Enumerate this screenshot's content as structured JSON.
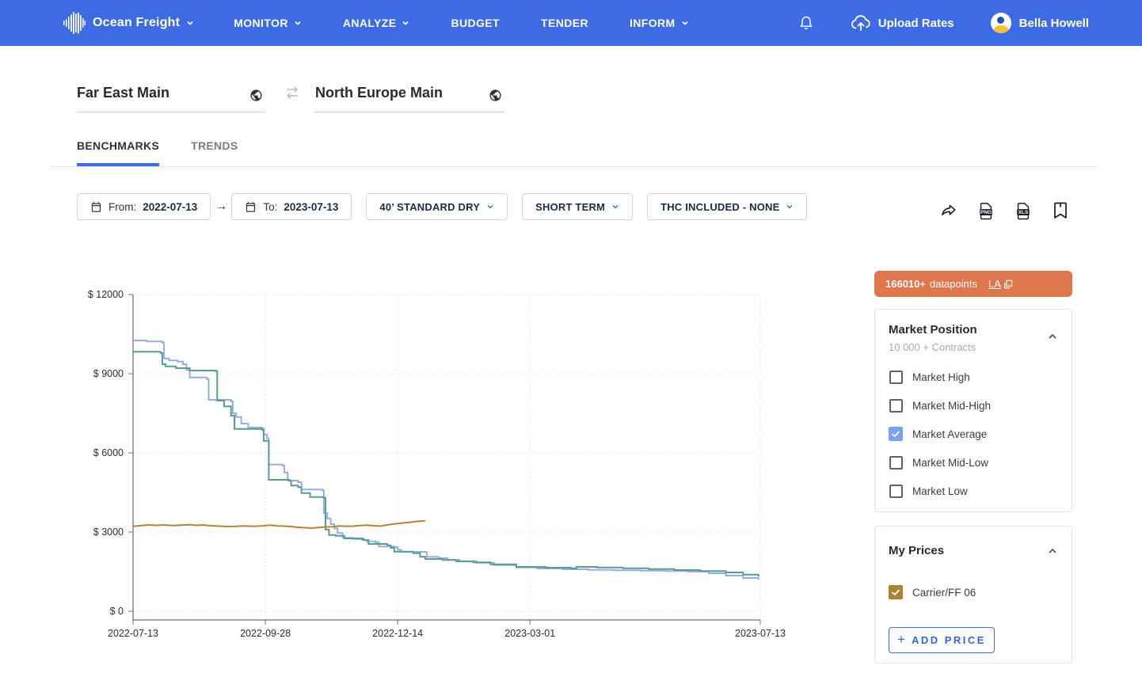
{
  "navbar": {
    "brand": "Ocean Freight",
    "items": [
      {
        "label": "MONITOR",
        "chevron": true
      },
      {
        "label": "ANALYZE",
        "chevron": true
      },
      {
        "label": "BUDGET",
        "chevron": false
      },
      {
        "label": "TENDER",
        "chevron": false
      },
      {
        "label": "INFORM",
        "chevron": true
      }
    ],
    "upload_label": "Upload Rates",
    "user_name": "Bella Howell",
    "color": "#3d6be4"
  },
  "routes": {
    "origin": "Far East Main",
    "destination": "North Europe Main"
  },
  "tabs": {
    "benchmarks": "BENCHMARKS",
    "trends": "TRENDS"
  },
  "filters": {
    "from_label": "From:",
    "from_value": "2022-07-13",
    "to_label": "To:",
    "to_value": "2023-07-13",
    "equipment": "40’ STANDARD DRY",
    "term": "SHORT TERM",
    "thc": "THC INCLUDED - NONE"
  },
  "export": {
    "png_label": "PNG",
    "xls_label": "XLS"
  },
  "datapoints_banner": {
    "count": "166010+",
    "label": "datapoints",
    "link": "LA",
    "color": "#e0764b"
  },
  "market_position": {
    "title": "Market Position",
    "subtitle": "10 000 + Contracts",
    "options": [
      {
        "label": "Market High",
        "checked": false
      },
      {
        "label": "Market Mid-High",
        "checked": false
      },
      {
        "label": "Market Average",
        "checked": true,
        "check_color": "#7ba1f1"
      },
      {
        "label": "Market Mid-Low",
        "checked": false
      },
      {
        "label": "Market Low",
        "checked": false
      }
    ]
  },
  "my_prices": {
    "title": "My Prices",
    "options": [
      {
        "label": "Carrier/FF 06",
        "checked": true,
        "check_color": "#ad8132"
      }
    ],
    "add_button": "ADD PRICE"
  },
  "chart_data": {
    "type": "line",
    "title": "",
    "xlabel": "",
    "ylabel": "",
    "x_axis": {
      "labels": [
        "2022-07-13",
        "2022-09-28",
        "2022-12-14",
        "2023-03-01",
        "2023-07-13"
      ],
      "label_days": [
        0,
        77,
        154,
        231,
        365
      ],
      "range_days": [
        0,
        365
      ]
    },
    "y_axis": {
      "ticks": [
        0,
        3000,
        6000,
        9000,
        12000
      ],
      "tick_labels": [
        "$ 0",
        "$ 3000",
        "$ 6000",
        "$ 9000",
        "$ 12000"
      ],
      "range": [
        0,
        12000
      ]
    },
    "grid": true,
    "legend": false,
    "series": [
      {
        "name": "Market Average (1)",
        "color": "#97abe9",
        "style": "step",
        "points": [
          [
            0,
            10260
          ],
          [
            8,
            10220
          ],
          [
            17,
            10180
          ],
          [
            18,
            9580
          ],
          [
            21,
            9500
          ],
          [
            26,
            9460
          ],
          [
            29,
            9360
          ],
          [
            31,
            9140
          ],
          [
            33,
            8860
          ],
          [
            43,
            8800
          ],
          [
            44,
            8010
          ],
          [
            57,
            7950
          ],
          [
            58,
            7500
          ],
          [
            60,
            7360
          ],
          [
            63,
            7110
          ],
          [
            67,
            6960
          ],
          [
            75,
            6930
          ],
          [
            76,
            6700
          ],
          [
            78,
            6550
          ],
          [
            79,
            5560
          ],
          [
            87,
            5520
          ],
          [
            88,
            5260
          ],
          [
            90,
            4950
          ],
          [
            96,
            4890
          ],
          [
            98,
            4610
          ],
          [
            110,
            4580
          ],
          [
            111,
            3720
          ],
          [
            113,
            3510
          ],
          [
            115,
            3300
          ],
          [
            117,
            3140
          ],
          [
            119,
            2960
          ],
          [
            122,
            2780
          ],
          [
            128,
            2740
          ],
          [
            133,
            2700
          ],
          [
            136,
            2650
          ],
          [
            141,
            2620
          ],
          [
            143,
            2450
          ],
          [
            152,
            2430
          ],
          [
            154,
            2330
          ],
          [
            156,
            2250
          ],
          [
            170,
            2240
          ],
          [
            171,
            2060
          ],
          [
            178,
            2010
          ],
          [
            183,
            1950
          ],
          [
            190,
            1900
          ],
          [
            200,
            1840
          ],
          [
            210,
            1750
          ],
          [
            223,
            1660
          ],
          [
            235,
            1620
          ],
          [
            250,
            1590
          ],
          [
            265,
            1570
          ],
          [
            280,
            1550
          ],
          [
            295,
            1540
          ],
          [
            310,
            1520
          ],
          [
            323,
            1500
          ],
          [
            335,
            1440
          ],
          [
            345,
            1350
          ],
          [
            355,
            1260
          ],
          [
            364,
            1190
          ]
        ]
      },
      {
        "name": "Market Average (2)",
        "color": "#55a08c",
        "style": "step",
        "points": [
          [
            0,
            9830
          ],
          [
            16,
            9790
          ],
          [
            17,
            9360
          ],
          [
            19,
            9280
          ],
          [
            25,
            9210
          ],
          [
            33,
            9120
          ],
          [
            48,
            9100
          ],
          [
            49,
            7980
          ],
          [
            53,
            7760
          ],
          [
            57,
            7410
          ],
          [
            59,
            6910
          ],
          [
            75,
            6880
          ],
          [
            76,
            6460
          ],
          [
            79,
            4980
          ],
          [
            91,
            4940
          ],
          [
            92,
            4760
          ],
          [
            96,
            4700
          ],
          [
            98,
            4480
          ],
          [
            103,
            4330
          ],
          [
            111,
            4300
          ],
          [
            112,
            3100
          ],
          [
            114,
            2890
          ],
          [
            118,
            2860
          ],
          [
            123,
            2760
          ],
          [
            134,
            2700
          ],
          [
            137,
            2550
          ],
          [
            148,
            2500
          ],
          [
            150,
            2400
          ],
          [
            152,
            2260
          ],
          [
            163,
            2200
          ],
          [
            167,
            2060
          ],
          [
            170,
            1980
          ],
          [
            180,
            1940
          ],
          [
            188,
            1890
          ],
          [
            198,
            1855
          ],
          [
            208,
            1780
          ],
          [
            223,
            1680
          ],
          [
            240,
            1650
          ],
          [
            255,
            1620
          ],
          [
            258,
            1680
          ],
          [
            270,
            1660
          ],
          [
            285,
            1630
          ],
          [
            300,
            1600
          ],
          [
            315,
            1560
          ],
          [
            330,
            1520
          ],
          [
            345,
            1470
          ],
          [
            355,
            1390
          ],
          [
            364,
            1310
          ]
        ]
      },
      {
        "name": "Carrier/FF 06",
        "color": "#b78233",
        "style": "line",
        "points": [
          [
            0,
            3220
          ],
          [
            5,
            3250
          ],
          [
            9,
            3270
          ],
          [
            14,
            3255
          ],
          [
            18,
            3270
          ],
          [
            23,
            3245
          ],
          [
            28,
            3260
          ],
          [
            33,
            3280
          ],
          [
            37,
            3255
          ],
          [
            41,
            3270
          ],
          [
            45,
            3240
          ],
          [
            50,
            3225
          ],
          [
            55,
            3210
          ],
          [
            60,
            3215
          ],
          [
            65,
            3230
          ],
          [
            70,
            3220
          ],
          [
            75,
            3235
          ],
          [
            80,
            3260
          ],
          [
            84,
            3230
          ],
          [
            88,
            3225
          ],
          [
            92,
            3210
          ],
          [
            96,
            3180
          ],
          [
            100,
            3165
          ],
          [
            104,
            3150
          ],
          [
            108,
            3175
          ],
          [
            112,
            3195
          ],
          [
            116,
            3205
          ],
          [
            120,
            3235
          ],
          [
            124,
            3215
          ],
          [
            128,
            3225
          ],
          [
            132,
            3245
          ],
          [
            136,
            3265
          ],
          [
            140,
            3240
          ],
          [
            144,
            3225
          ],
          [
            148,
            3270
          ],
          [
            151,
            3300
          ],
          [
            154,
            3320
          ],
          [
            158,
            3355
          ],
          [
            161,
            3370
          ],
          [
            164,
            3395
          ],
          [
            167,
            3415
          ],
          [
            170,
            3430
          ]
        ]
      }
    ]
  }
}
